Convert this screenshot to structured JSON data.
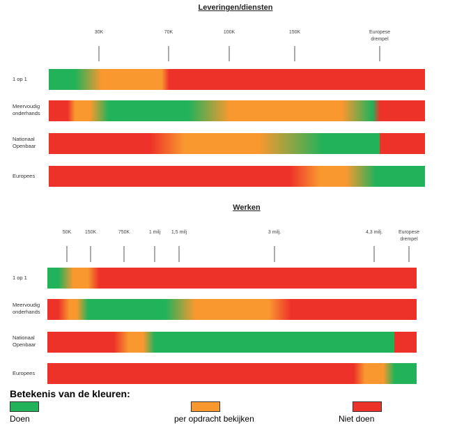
{
  "colors": {
    "green": "#21b25a",
    "orange": "#f8982f",
    "red": "#ed3229"
  },
  "diagrams": [
    {
      "title": "Leveringen/diensten",
      "ticks": [
        "30K",
        "70K",
        "100K",
        "150K",
        "Europese\ndrempel"
      ],
      "rows": [
        {
          "label": "1 op 1",
          "stops": [
            [
              "green",
              0
            ],
            [
              "green",
              7
            ],
            [
              "orange",
              14
            ],
            [
              "orange",
              30
            ],
            [
              "red",
              32
            ],
            [
              "red",
              100
            ]
          ]
        },
        {
          "label": "Meervoudig\nonderhands",
          "stops": [
            [
              "red",
              0
            ],
            [
              "red",
              5
            ],
            [
              "orange",
              7
            ],
            [
              "orange",
              11
            ],
            [
              "green",
              16
            ],
            [
              "green",
              37
            ],
            [
              "orange",
              48
            ],
            [
              "orange",
              78
            ],
            [
              "green",
              86
            ],
            [
              "red",
              88
            ],
            [
              "red",
              100
            ]
          ]
        },
        {
          "label": "Nationaal\nOpenbaar",
          "stops": [
            [
              "red",
              0
            ],
            [
              "red",
              27
            ],
            [
              "orange",
              36
            ],
            [
              "orange",
              56
            ],
            [
              "green",
              73
            ],
            [
              "green",
              88
            ],
            [
              "red",
              88
            ],
            [
              "red",
              100
            ]
          ]
        },
        {
          "label": "Europees",
          "stops": [
            [
              "red",
              0
            ],
            [
              "red",
              64
            ],
            [
              "orange",
              72
            ],
            [
              "orange",
              79
            ],
            [
              "green",
              87
            ],
            [
              "green",
              100
            ]
          ]
        }
      ]
    },
    {
      "title": "Werken",
      "ticks": [
        "50K",
        "150K",
        "750K",
        "1 milj",
        "1,5 milj",
        "3 milj.",
        "4,3 milj.",
        "Europese\ndrempel"
      ],
      "rows": [
        {
          "label": "1 op 1",
          "stops": [
            [
              "green",
              0
            ],
            [
              "green",
              3
            ],
            [
              "orange",
              7
            ],
            [
              "orange",
              11
            ],
            [
              "red",
              14
            ],
            [
              "red",
              100
            ]
          ]
        },
        {
          "label": "Meervoudig\nonderhands",
          "stops": [
            [
              "red",
              0
            ],
            [
              "red",
              3
            ],
            [
              "orange",
              6
            ],
            [
              "orange",
              8
            ],
            [
              "green",
              11
            ],
            [
              "green",
              32
            ],
            [
              "orange",
              40
            ],
            [
              "orange",
              60
            ],
            [
              "red",
              66
            ],
            [
              "red",
              100
            ]
          ]
        },
        {
          "label": "Nationaal\nOpenbaar",
          "stops": [
            [
              "red",
              0
            ],
            [
              "red",
              18
            ],
            [
              "orange",
              22
            ],
            [
              "orange",
              26
            ],
            [
              "green",
              29
            ],
            [
              "green",
              94
            ],
            [
              "red",
              94
            ],
            [
              "red",
              100
            ]
          ]
        },
        {
          "label": "Europees",
          "stops": [
            [
              "red",
              0
            ],
            [
              "red",
              83
            ],
            [
              "orange",
              86
            ],
            [
              "orange",
              91
            ],
            [
              "green",
              94
            ],
            [
              "green",
              100
            ]
          ]
        }
      ]
    }
  ],
  "legend": {
    "title": "Betekenis van de kleuren:",
    "items": [
      {
        "label": "Doen",
        "color": "green"
      },
      {
        "label": "per opdracht bekijken",
        "color": "orange"
      },
      {
        "label": "Niet doen",
        "color": "red"
      }
    ]
  }
}
